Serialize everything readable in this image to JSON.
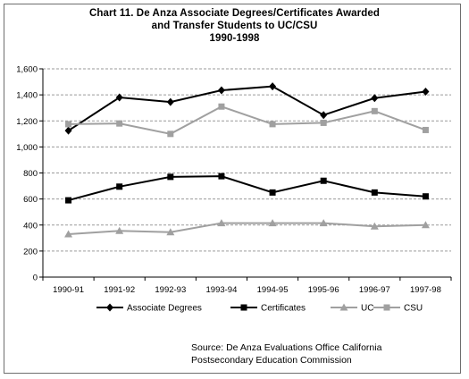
{
  "chart_data": {
    "type": "line",
    "title": "Chart 11. De Anza Associate Degrees/Certificates Awarded",
    "subtitle": "and  Transfer Students to UC/CSU",
    "subtitle2": "1990-1998",
    "categories": [
      "1990-91",
      "1991-92",
      "1992-93",
      "1993-94",
      "1994-95",
      "1995-96",
      "1996-97",
      "1997-98"
    ],
    "y_ticks": [
      "0",
      "200",
      "400",
      "600",
      "800",
      "1,000",
      "1,200",
      "1,400",
      "1,600"
    ],
    "ylim": [
      0,
      1600
    ],
    "grid": true,
    "legend_position": "bottom",
    "series": [
      {
        "name": "Associate Degrees",
        "marker": "diamond",
        "color": "#000000",
        "values": [
          1125,
          1380,
          1345,
          1435,
          1465,
          1245,
          1375,
          1425
        ]
      },
      {
        "name": "Certificates",
        "marker": "square",
        "color": "#000000",
        "values": [
          590,
          695,
          770,
          775,
          650,
          740,
          650,
          620
        ]
      },
      {
        "name": "UC",
        "marker": "triangle",
        "color": "#a0a0a0",
        "values": [
          330,
          355,
          345,
          415,
          415,
          415,
          390,
          400
        ]
      },
      {
        "name": "CSU",
        "marker": "square",
        "color": "#a0a0a0",
        "values": [
          1175,
          1180,
          1100,
          1310,
          1175,
          1185,
          1275,
          1130
        ]
      }
    ],
    "source_line1": "Source: De Anza Evaluations Office California",
    "source_line2": "Postsecondary Education Commission"
  }
}
